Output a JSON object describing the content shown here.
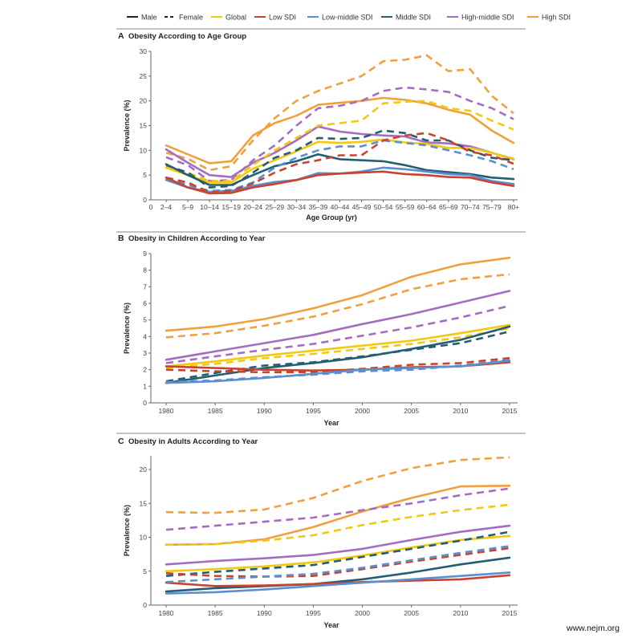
{
  "legend": {
    "items": [
      {
        "label": "Male",
        "style": "solid",
        "color": "#222222"
      },
      {
        "label": "Female",
        "style": "dashed",
        "color": "#222222"
      },
      {
        "label": "Global",
        "style": "solid",
        "color": "#F2C811"
      },
      {
        "label": "Low SDI",
        "style": "solid",
        "color": "#C9432F"
      },
      {
        "label": "Low-middle SDI",
        "style": "solid",
        "color": "#5B8FD0"
      },
      {
        "label": "Middle SDI",
        "style": "solid",
        "color": "#235E73"
      },
      {
        "label": "High-middle SDI",
        "style": "solid",
        "color": "#A56CC1"
      },
      {
        "label": "High SDI",
        "style": "solid",
        "color": "#F0A03C"
      }
    ]
  },
  "footer": "www.nejm.org",
  "chart_data": [
    {
      "type": "line",
      "letter": "A",
      "title": "Obesity According to Age Group",
      "xlabel": "Age Group (yr)",
      "ylabel": "Prevalence (%)",
      "x_origin_label": "0",
      "categories": [
        "2–4",
        "5–9",
        "10–14",
        "15–19",
        "20–24",
        "25–29",
        "30–34",
        "35–39",
        "40–44",
        "45–49",
        "50–54",
        "55–59",
        "60–64",
        "65–69",
        "70–74",
        "75–79",
        "80+"
      ],
      "ylim": [
        0,
        30
      ],
      "yticks": [
        0,
        5,
        10,
        15,
        20,
        25,
        30
      ],
      "grid": false,
      "series": [
        {
          "name": "High SDI",
          "sex": "Female",
          "color": "#F0A03C",
          "values": [
            9.5,
            8.3,
            6.0,
            6.8,
            12.0,
            16.5,
            20.0,
            22.0,
            23.5,
            25.0,
            28.0,
            28.3,
            29.2,
            26.0,
            26.4,
            21.0,
            17.5
          ]
        },
        {
          "name": "High SDI",
          "sex": "Male",
          "color": "#F0A03C",
          "values": [
            11.0,
            9.2,
            7.4,
            7.8,
            13.0,
            15.5,
            17.0,
            19.2,
            19.6,
            20.0,
            20.6,
            20.2,
            19.5,
            18.2,
            17.2,
            14.0,
            11.5
          ]
        },
        {
          "name": "High-middle SDI",
          "sex": "Female",
          "color": "#A56CC1",
          "values": [
            8.6,
            7.0,
            3.8,
            4.0,
            8.0,
            11.0,
            15.0,
            18.5,
            19.0,
            20.0,
            22.0,
            22.7,
            22.3,
            21.8,
            20.0,
            18.5,
            16.3
          ]
        },
        {
          "name": "High-middle SDI",
          "sex": "Male",
          "color": "#A56CC1",
          "values": [
            10.2,
            7.5,
            5.0,
            4.6,
            7.5,
            9.5,
            12.0,
            14.8,
            13.8,
            13.3,
            13.0,
            12.8,
            11.6,
            11.4,
            10.8,
            9.5,
            8.2
          ]
        },
        {
          "name": "Global",
          "sex": "Female",
          "color": "#F2C811",
          "values": [
            7.0,
            5.5,
            3.8,
            3.8,
            7.0,
            10.0,
            12.5,
            15.0,
            15.5,
            16.0,
            19.5,
            19.8,
            20.0,
            18.5,
            18.0,
            16.0,
            14.2
          ]
        },
        {
          "name": "Global",
          "sex": "Male",
          "color": "#F2C811",
          "values": [
            6.5,
            5.0,
            3.5,
            3.5,
            6.3,
            8.0,
            9.8,
            11.7,
            11.5,
            11.7,
            12.2,
            11.6,
            11.3,
            10.5,
            10.5,
            9.5,
            8.3
          ]
        },
        {
          "name": "Middle SDI",
          "sex": "Female",
          "color": "#235E73",
          "values": [
            7.0,
            5.5,
            2.5,
            2.8,
            5.5,
            8.5,
            10.0,
            12.5,
            12.3,
            12.5,
            14.0,
            13.5,
            12.0,
            12.0,
            10.0,
            8.5,
            8.0
          ]
        },
        {
          "name": "Middle SDI",
          "sex": "Male",
          "color": "#235E73",
          "values": [
            7.2,
            5.0,
            3.0,
            3.0,
            5.0,
            6.8,
            7.8,
            9.2,
            8.2,
            8.0,
            7.8,
            7.0,
            6.0,
            5.6,
            5.2,
            4.5,
            4.2
          ]
        },
        {
          "name": "Low-middle SDI",
          "sex": "Female",
          "color": "#5B8FD0",
          "values": [
            4.2,
            3.0,
            1.8,
            2.0,
            3.5,
            6.5,
            8.5,
            10.0,
            10.8,
            10.8,
            12.0,
            11.5,
            11.0,
            10.0,
            9.0,
            7.8,
            6.2
          ]
        },
        {
          "name": "Low-middle SDI",
          "sex": "Male",
          "color": "#5B8FD0",
          "values": [
            4.0,
            2.5,
            1.6,
            1.8,
            2.8,
            3.6,
            4.0,
            5.4,
            5.3,
            5.7,
            6.5,
            6.2,
            5.7,
            5.2,
            5.0,
            3.8,
            3.2
          ]
        },
        {
          "name": "Low SDI",
          "sex": "Female",
          "color": "#C9432F",
          "values": [
            4.5,
            3.5,
            1.5,
            1.8,
            3.3,
            5.5,
            7.2,
            8.0,
            9.0,
            9.0,
            12.0,
            13.0,
            13.5,
            12.0,
            9.7,
            9.0,
            7.3
          ]
        },
        {
          "name": "Low SDI",
          "sex": "Male",
          "color": "#C9432F",
          "values": [
            4.5,
            2.5,
            1.3,
            1.4,
            2.5,
            3.2,
            4.0,
            5.0,
            5.3,
            5.5,
            5.7,
            5.2,
            5.0,
            4.6,
            4.5,
            3.5,
            2.8
          ]
        }
      ]
    },
    {
      "type": "line",
      "letter": "B",
      "title": "Obesity in Children According to Year",
      "xlabel": "Year",
      "ylabel": "Prevalence (%)",
      "x": [
        1980,
        1985,
        1990,
        1995,
        2000,
        2005,
        2010,
        2015
      ],
      "xticks": [
        1980,
        1985,
        1990,
        1995,
        2000,
        2005,
        2010,
        2015
      ],
      "xlim": [
        1978.5,
        2016
      ],
      "ylim": [
        0,
        9
      ],
      "yticks": [
        0,
        1,
        2,
        3,
        4,
        5,
        6,
        7,
        8,
        9
      ],
      "grid": false,
      "series": [
        {
          "name": "High SDI",
          "sex": "Female",
          "color": "#F0A03C",
          "values": [
            3.95,
            4.2,
            4.65,
            5.2,
            5.95,
            6.85,
            7.45,
            7.75
          ]
        },
        {
          "name": "High SDI",
          "sex": "Male",
          "color": "#F0A03C",
          "values": [
            4.35,
            4.6,
            5.05,
            5.7,
            6.5,
            7.6,
            8.35,
            8.75
          ]
        },
        {
          "name": "High-middle SDI",
          "sex": "Female",
          "color": "#A56CC1",
          "values": [
            2.4,
            2.8,
            3.2,
            3.55,
            4.05,
            4.55,
            5.15,
            5.85
          ]
        },
        {
          "name": "High-middle SDI",
          "sex": "Male",
          "color": "#A56CC1",
          "values": [
            2.6,
            3.1,
            3.6,
            4.1,
            4.75,
            5.35,
            6.05,
            6.75
          ]
        },
        {
          "name": "Global",
          "sex": "Female",
          "color": "#F2C811",
          "values": [
            2.1,
            2.35,
            2.7,
            2.95,
            3.25,
            3.55,
            3.95,
            4.5
          ]
        },
        {
          "name": "Global",
          "sex": "Male",
          "color": "#F2C811",
          "values": [
            2.2,
            2.5,
            2.85,
            3.15,
            3.45,
            3.75,
            4.2,
            4.7
          ]
        },
        {
          "name": "Middle SDI",
          "sex": "Female",
          "color": "#235E73",
          "values": [
            1.3,
            1.8,
            2.25,
            2.45,
            2.8,
            3.2,
            3.6,
            4.3
          ]
        },
        {
          "name": "Middle SDI",
          "sex": "Male",
          "color": "#235E73",
          "values": [
            1.2,
            1.65,
            2.1,
            2.4,
            2.75,
            3.25,
            3.8,
            4.6
          ]
        },
        {
          "name": "Low SDI",
          "sex": "Female",
          "color": "#C9432F",
          "values": [
            2.0,
            1.9,
            1.85,
            1.85,
            2.05,
            2.3,
            2.4,
            2.7
          ]
        },
        {
          "name": "Low SDI",
          "sex": "Male",
          "color": "#C9432F",
          "values": [
            2.2,
            2.1,
            2.0,
            1.95,
            2.0,
            2.15,
            2.2,
            2.45
          ]
        },
        {
          "name": "Low-middle SDI",
          "sex": "Female",
          "color": "#5B8FD0",
          "values": [
            1.25,
            1.35,
            1.55,
            1.7,
            1.9,
            2.0,
            2.25,
            2.6
          ]
        },
        {
          "name": "Low-middle SDI",
          "sex": "Male",
          "color": "#5B8FD0",
          "values": [
            1.2,
            1.3,
            1.5,
            1.75,
            2.0,
            2.1,
            2.2,
            2.55
          ]
        }
      ]
    },
    {
      "type": "line",
      "letter": "C",
      "title": "Obesity in Adults According to Year",
      "xlabel": "Year",
      "ylabel": "Prevalence (%)",
      "x": [
        1980,
        1985,
        1990,
        1995,
        2000,
        2005,
        2010,
        2015
      ],
      "xticks": [
        1980,
        1985,
        1990,
        1995,
        2000,
        2005,
        2010,
        2015
      ],
      "xlim": [
        1978.5,
        2016
      ],
      "ylim": [
        0,
        22
      ],
      "yticks": [
        0,
        5,
        10,
        15,
        20
      ],
      "grid": false,
      "series": [
        {
          "name": "High SDI",
          "sex": "Female",
          "color": "#F0A03C",
          "values": [
            13.7,
            13.6,
            14.1,
            15.8,
            18.3,
            20.2,
            21.4,
            21.8
          ]
        },
        {
          "name": "High SDI",
          "sex": "Male",
          "color": "#F0A03C",
          "values": [
            8.9,
            9.0,
            9.7,
            11.5,
            13.8,
            15.8,
            17.5,
            17.6
          ]
        },
        {
          "name": "High-middle SDI",
          "sex": "Female",
          "color": "#A56CC1",
          "values": [
            11.1,
            11.7,
            12.3,
            12.9,
            14.0,
            15.0,
            16.2,
            17.2
          ]
        },
        {
          "name": "High-middle SDI",
          "sex": "Male",
          "color": "#A56CC1",
          "values": [
            6.0,
            6.5,
            6.9,
            7.4,
            8.3,
            9.6,
            10.8,
            11.7
          ]
        },
        {
          "name": "Global",
          "sex": "Female",
          "color": "#F2C811",
          "values": [
            8.9,
            9.0,
            9.5,
            10.3,
            11.8,
            13.0,
            14.0,
            14.8
          ]
        },
        {
          "name": "Global",
          "sex": "Male",
          "color": "#F2C811",
          "values": [
            5.0,
            5.3,
            5.7,
            6.3,
            7.3,
            8.5,
            9.6,
            10.2
          ]
        },
        {
          "name": "Middle SDI",
          "sex": "Female",
          "color": "#235E73",
          "values": [
            4.3,
            4.9,
            5.4,
            5.9,
            7.1,
            8.3,
            9.5,
            10.8
          ]
        },
        {
          "name": "Middle SDI",
          "sex": "Male",
          "color": "#235E73",
          "values": [
            2.0,
            2.5,
            2.8,
            3.1,
            3.8,
            4.8,
            6.0,
            7.0
          ]
        },
        {
          "name": "Low SDI",
          "sex": "Female",
          "color": "#C9432F",
          "values": [
            4.7,
            4.3,
            4.2,
            4.3,
            5.3,
            6.4,
            7.4,
            8.4
          ]
        },
        {
          "name": "Low SDI",
          "sex": "Male",
          "color": "#C9432F",
          "values": [
            3.3,
            2.8,
            2.9,
            3.1,
            3.4,
            3.6,
            3.8,
            4.4
          ]
        },
        {
          "name": "Low-middle SDI",
          "sex": "Female",
          "color": "#5B8FD0",
          "values": [
            3.4,
            3.8,
            4.2,
            4.6,
            5.5,
            6.6,
            7.7,
            8.7
          ]
        },
        {
          "name": "Low-middle SDI",
          "sex": "Male",
          "color": "#5B8FD0",
          "values": [
            1.7,
            1.9,
            2.3,
            2.8,
            3.3,
            3.8,
            4.3,
            4.8
          ]
        }
      ]
    }
  ]
}
